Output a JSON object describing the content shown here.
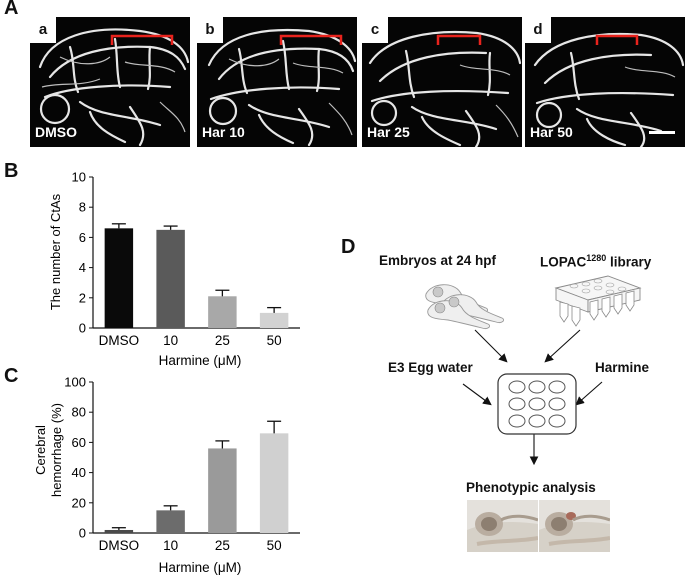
{
  "panel_labels": {
    "A": "A",
    "B": "B",
    "C": "C",
    "D": "D"
  },
  "micrographs": [
    {
      "letter": "a",
      "condition": "DMSO"
    },
    {
      "letter": "b",
      "condition": "Har 10"
    },
    {
      "letter": "c",
      "condition": "Har 25"
    },
    {
      "letter": "d",
      "condition": "Har 50"
    }
  ],
  "colors": {
    "bracket": "#e8231d",
    "bar_B": [
      "#0a0a0a",
      "#5a5a5a",
      "#a8a8a8",
      "#d2d2d2"
    ],
    "bar_C": [
      "#4a4a4a",
      "#6c6c6c",
      "#9a9a9a",
      "#d0d0d0"
    ]
  },
  "chart_data": [
    {
      "type": "bar",
      "panel": "B",
      "categories": [
        "DMSO",
        "10",
        "25",
        "50"
      ],
      "values": [
        6.6,
        6.5,
        2.1,
        1.0
      ],
      "errors": [
        0.3,
        0.25,
        0.4,
        0.35
      ],
      "xlabel": "Harmine (μM)",
      "ylabel": "The number of CtAs",
      "ylim": [
        0,
        10
      ],
      "yticks": [
        "0",
        "2",
        "4",
        "6",
        "8",
        "10"
      ]
    },
    {
      "type": "bar",
      "panel": "C",
      "categories": [
        "DMSO",
        "10",
        "25",
        "50"
      ],
      "values": [
        2,
        15,
        56,
        66
      ],
      "errors": [
        1.5,
        3,
        5,
        8
      ],
      "xlabel": "Harmine (μM)",
      "ylabel_line1": "Cerebral",
      "ylabel_line2": "hemorrhage (%)",
      "ylim": [
        0,
        100
      ],
      "yticks": [
        "0",
        "20",
        "40",
        "60",
        "80",
        "100"
      ]
    }
  ],
  "schematic": {
    "embryos_label": "Embryos at 24 hpf",
    "library_label_main": "LOPAC",
    "library_label_sup": "1280",
    "library_label_end": " library",
    "egg_water_label": "E3 Egg water",
    "harmine_label": "Harmine",
    "analysis_label": "Phenotypic analysis"
  }
}
